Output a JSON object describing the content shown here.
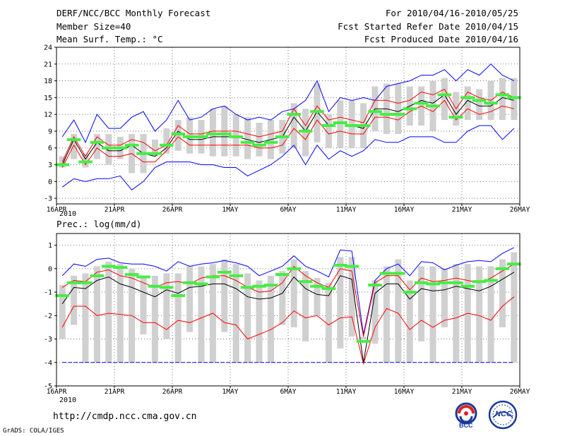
{
  "header": {
    "title": "DERF/NCC/BCC Monthly Forecast",
    "member_size": "Member Size=40",
    "variable": "Mean Surf. Temp.: °C",
    "period": "For 2010/04/16-2010/05/25",
    "started": "Fcst Started Refer Date 2010/04/15",
    "produced": "Fcst Produced Date 2010/04/16"
  },
  "footer": {
    "url": "http://cmdp.ncc.cma.gov.cn",
    "grads": "GrADS: COLA/IGES",
    "logo_bcc": "BCC",
    "logo_ncc": "NCC"
  },
  "colors": {
    "envelope": "#0000ff",
    "spread": "#ff0000",
    "mean": "#000000",
    "median": "#44ee44",
    "box": "#d0d0d0",
    "grid": "#555555"
  },
  "chart_data": [
    {
      "type": "line",
      "title": "Mean Surf. Temp.: °C",
      "x_tick_labels": [
        "16APR",
        "21APR",
        "26APR",
        "1MAY",
        "6MAY",
        "11MAY",
        "16MAY",
        "21MAY",
        "26MAY"
      ],
      "x_year_label": "2010",
      "x_days": 40,
      "ylim": [
        -4,
        24
      ],
      "yticks": [
        -3,
        0,
        3,
        6,
        9,
        12,
        15,
        18,
        21,
        24
      ],
      "series": [
        {
          "name": "max",
          "values": [
            8,
            11,
            7,
            12,
            9.5,
            9.5,
            11.5,
            12.5,
            9,
            11,
            14.5,
            11,
            11.5,
            13,
            13.5,
            12,
            11,
            11.5,
            11,
            12.5,
            13,
            14.5,
            18,
            12.5,
            15,
            14.5,
            15,
            14.5,
            17,
            17.5,
            18,
            19,
            19,
            20,
            18,
            20,
            19,
            21,
            19,
            18
          ]
        },
        {
          "name": "mean_plus",
          "values": [
            3.5,
            8,
            4.5,
            8,
            6.5,
            6.5,
            7.5,
            7,
            5.5,
            6.5,
            10,
            8.5,
            8.5,
            9,
            9,
            9,
            8.5,
            8,
            8.5,
            9,
            13,
            10,
            13.5,
            11,
            11.5,
            11,
            10.5,
            14.5,
            14.5,
            14,
            14.5,
            16,
            15.5,
            16.5,
            13,
            16,
            15,
            14.5,
            16,
            15
          ]
        },
        {
          "name": "mean",
          "values": [
            3,
            7.5,
            4,
            7,
            5.5,
            5.5,
            6.5,
            5,
            4.5,
            6,
            9,
            7.5,
            7.5,
            8,
            8,
            8,
            7.5,
            7,
            7.5,
            8,
            11.5,
            9,
            12.5,
            10,
            10.5,
            10,
            9.5,
            13,
            13,
            12.5,
            13.5,
            14.5,
            14,
            15.5,
            12,
            14.5,
            13.5,
            13.5,
            15,
            14.5
          ]
        },
        {
          "name": "mean_minus",
          "values": [
            2.5,
            6.5,
            3,
            6,
            4.5,
            4.5,
            5,
            3.5,
            3.5,
            5.5,
            8,
            6.5,
            6.5,
            6.5,
            6.5,
            6.5,
            6.5,
            6,
            6,
            6.5,
            9.5,
            7.5,
            11,
            8.5,
            9,
            8.5,
            8.5,
            11.5,
            11.5,
            11,
            12.5,
            13.5,
            12.5,
            14.5,
            11,
            13,
            12,
            12.5,
            13.5,
            13
          ]
        },
        {
          "name": "min",
          "values": [
            -1,
            0.5,
            0,
            0.5,
            0.5,
            1,
            -1.5,
            0,
            2.5,
            3.5,
            3.5,
            3.5,
            3,
            3,
            2.5,
            2.5,
            1,
            2,
            3,
            4.5,
            6.5,
            3,
            6.5,
            4,
            5.5,
            4.5,
            5.5,
            7.5,
            7,
            7,
            8,
            8,
            8,
            7,
            7,
            9,
            10,
            10,
            7.5,
            9.5
          ]
        },
        {
          "name": "median",
          "values": [
            3,
            7.5,
            3.5,
            7,
            6,
            6,
            6.5,
            5,
            5,
            6.5,
            8.5,
            8,
            8,
            8.5,
            8.5,
            8,
            7,
            6.5,
            7,
            8,
            12,
            9,
            12.5,
            10,
            10.5,
            10,
            10,
            12.5,
            12,
            12,
            13,
            14,
            13.5,
            15.5,
            11.5,
            15,
            14.5,
            14,
            15.5,
            15
          ]
        },
        {
          "name": "box_high",
          "values": [
            4.5,
            8.5,
            5,
            8.5,
            8.5,
            8,
            8.5,
            8.5,
            7.5,
            9.5,
            11,
            11.5,
            11,
            13,
            13.5,
            12,
            11.5,
            10.5,
            11,
            11,
            14,
            13,
            17.5,
            12,
            14.5,
            14.5,
            14,
            17,
            17.5,
            17.5,
            17,
            17,
            18,
            18.5,
            16,
            17,
            16.5,
            18,
            18.5,
            18.5
          ]
        },
        {
          "name": "box_low",
          "values": [
            2.5,
            4,
            2.5,
            4,
            3,
            4,
            1.5,
            1.5,
            4.5,
            5,
            5.5,
            5,
            5,
            4.5,
            4.5,
            4.5,
            4,
            4.5,
            4,
            5,
            6,
            4.5,
            7,
            6,
            6,
            6,
            6,
            9,
            8.5,
            8.5,
            10,
            10,
            9,
            11,
            10,
            11,
            11,
            11,
            11,
            11
          ]
        }
      ]
    },
    {
      "type": "line",
      "title": "Prec.: log(mm/d)",
      "x_tick_labels": [
        "16APR",
        "21APR",
        "26APR",
        "1MAY",
        "6MAY",
        "11MAY",
        "16MAY",
        "21MAY",
        "26MAY"
      ],
      "x_year_label": "2010",
      "x_days": 40,
      "ylim": [
        -5,
        1.5
      ],
      "yticks": [
        -5,
        -4,
        -3,
        -2,
        -1,
        0,
        1
      ],
      "series": [
        {
          "name": "max",
          "values": [
            -0.3,
            0.2,
            0.1,
            0.4,
            0.45,
            0.25,
            0.2,
            0.2,
            0.1,
            -0.1,
            0.3,
            0.1,
            0.2,
            0.25,
            0.35,
            0.25,
            0.1,
            -0.3,
            -0.1,
            0.1,
            0.55,
            0.1,
            -0.1,
            -0.35,
            0.8,
            0.75,
            -2.8,
            -0.5,
            0,
            0.2,
            -0.3,
            0.3,
            0.25,
            -0.05,
            0.15,
            0.3,
            0.35,
            0.3,
            0.65,
            0.9
          ]
        },
        {
          "name": "mean_plus",
          "values": [
            -0.8,
            -0.5,
            -0.55,
            -0.15,
            -0.05,
            -0.3,
            -0.4,
            -0.6,
            -0.8,
            -0.6,
            -0.55,
            -0.65,
            -0.4,
            -0.3,
            -0.3,
            -0.5,
            -0.8,
            -1.0,
            -0.95,
            -0.6,
            0.1,
            -0.3,
            -0.6,
            -0.8,
            0,
            -0.1,
            -2.9,
            -0.6,
            -0.3,
            -0.3,
            -0.9,
            -0.4,
            -0.55,
            -0.5,
            -0.4,
            -0.5,
            -0.6,
            -0.4,
            -0.1,
            0.2
          ]
        },
        {
          "name": "mean",
          "values": [
            -1.05,
            -0.65,
            -0.7,
            -0.3,
            -0.2,
            -0.5,
            -0.6,
            -0.8,
            -1.0,
            -0.6,
            -0.85,
            -0.55,
            -0.55,
            -0.45,
            -0.45,
            -0.65,
            -1.0,
            -1.1,
            -1.05,
            -0.8,
            -0.1,
            -0.6,
            -0.85,
            -1.0,
            -0.15,
            -0.25,
            -3.2,
            -0.85,
            -0.5,
            -0.5,
            -1.05,
            -0.65,
            -0.7,
            -0.75,
            -0.55,
            -0.65,
            -0.75,
            -0.55,
            -0.25,
            0.05
          ]
        },
        {
          "name": "mean_minus",
          "values": [
            -1.5,
            -0.8,
            -0.85,
            -0.5,
            -0.35,
            -0.65,
            -0.8,
            -1.0,
            -1.2,
            -0.9,
            -1.05,
            -0.8,
            -0.75,
            -0.65,
            -0.65,
            -0.85,
            -1.2,
            -1.3,
            -1.25,
            -1.05,
            -0.35,
            -0.85,
            -1.1,
            -1.15,
            -0.3,
            -0.45,
            -4.0,
            -1.05,
            -0.65,
            -0.65,
            -1.3,
            -0.85,
            -0.95,
            -0.9,
            -0.75,
            -0.85,
            -0.95,
            -0.75,
            -0.45,
            -0.15
          ]
        },
        {
          "name": "low_red",
          "values": [
            -2.5,
            -1.6,
            -1.6,
            -2.0,
            -1.9,
            -1.95,
            -2.0,
            -2.3,
            -2.3,
            -2.6,
            -2.2,
            -2.3,
            -2.1,
            -1.9,
            -2.3,
            -2.4,
            -3.0,
            -2.8,
            -2.6,
            -2.3,
            -1.8,
            -2.1,
            -2.0,
            -2.4,
            -2.1,
            -2.05,
            -4.05,
            -2.5,
            -1.7,
            -1.9,
            -2.6,
            -2.2,
            -2.5,
            -2.2,
            -2.1,
            -1.9,
            -2.0,
            -2.2,
            -1.6,
            -1.2
          ]
        },
        {
          "name": "min",
          "values": [
            -4,
            -4,
            -4,
            -4,
            -4,
            -4,
            -4,
            -4,
            -4,
            -4,
            -4,
            -4,
            -4,
            -4,
            -4,
            -4,
            -4,
            -4,
            -4,
            -4,
            -4,
            -4,
            -4,
            -4,
            -4,
            -4,
            -4,
            -4,
            -4,
            -4,
            -4,
            -4,
            -4,
            -4,
            -4,
            -4,
            -4,
            -4,
            -4,
            -4
          ]
        },
        {
          "name": "median",
          "values": [
            -1.15,
            -0.6,
            -0.6,
            -0.3,
            0.1,
            0.05,
            -0.25,
            -0.35,
            -0.75,
            -0.8,
            -1.15,
            -0.6,
            -0.65,
            -0.35,
            -0.15,
            -0.3,
            -0.8,
            -0.75,
            -0.7,
            -0.25,
            0.0,
            -0.55,
            -0.75,
            -0.85,
            0.15,
            0.1,
            -3.1,
            -0.7,
            -0.2,
            -0.2,
            -1.0,
            -0.6,
            -0.65,
            -0.6,
            -0.6,
            -0.75,
            -0.55,
            -0.5,
            0.0,
            0.2
          ]
        },
        {
          "name": "box_high",
          "values": [
            -0.7,
            -0.3,
            -0.2,
            0.1,
            0.3,
            0.2,
            0.0,
            -0.3,
            -0.3,
            -0.2,
            -0.2,
            0.1,
            0.1,
            0.2,
            0.4,
            0.2,
            -0.2,
            -0.5,
            -0.3,
            -0.1,
            0.4,
            -0.1,
            -0.4,
            -0.6,
            0.5,
            0.5,
            -2.9,
            -0.5,
            0.1,
            0.4,
            -0.5,
            0.1,
            0.1,
            0.0,
            0.2,
            0.2,
            0.1,
            0.1,
            0.4,
            0.7
          ]
        },
        {
          "name": "box_low",
          "values": [
            -3.0,
            -2.4,
            -4.0,
            -4.0,
            -4.0,
            -4.0,
            -4.0,
            -2.8,
            -4.0,
            -3.0,
            -4.0,
            -2.7,
            -4.0,
            -4.0,
            -2.7,
            -4.0,
            -4.0,
            -4.0,
            -4.0,
            -2.4,
            -2.5,
            -3.1,
            -2.0,
            -4.0,
            -3.4,
            -2.9,
            -3.0,
            -3.2,
            -4.0,
            -4.0,
            -4.0,
            -3.1,
            -4.0,
            -2.5,
            -4.0,
            -4.0,
            -4.0,
            -4.0,
            -2.5,
            -4.0
          ]
        }
      ]
    }
  ]
}
